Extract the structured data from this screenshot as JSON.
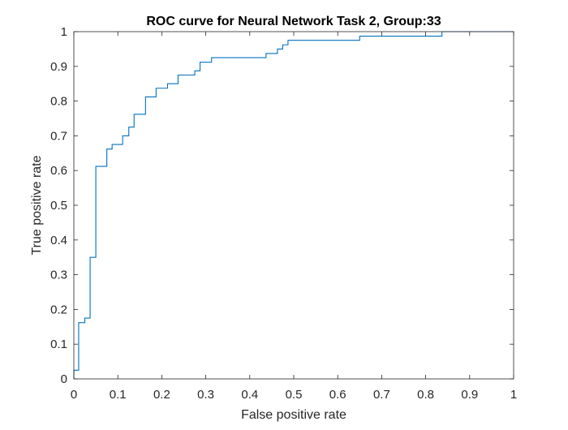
{
  "chart_data": {
    "type": "line",
    "title": "ROC curve for Neural Network Task 2, Group:33",
    "xlabel": "False positive rate",
    "ylabel": "True positive rate",
    "xlim": [
      0,
      1
    ],
    "ylim": [
      0,
      1
    ],
    "x_ticks": [
      0,
      0.1,
      0.2,
      0.3,
      0.4,
      0.5,
      0.6,
      0.7,
      0.8,
      0.9,
      1
    ],
    "x_tick_labels": [
      "0",
      "0.1",
      "0.2",
      "0.3",
      "0.4",
      "0.5",
      "0.6",
      "0.7",
      "0.8",
      "0.9",
      "1"
    ],
    "y_ticks": [
      0,
      0.1,
      0.2,
      0.3,
      0.4,
      0.5,
      0.6,
      0.7,
      0.8,
      0.9,
      1
    ],
    "y_tick_labels": [
      "0",
      "0.1",
      "0.2",
      "0.3",
      "0.4",
      "0.5",
      "0.6",
      "0.7",
      "0.8",
      "0.9",
      "1"
    ],
    "grid": false,
    "box": true,
    "series": [
      {
        "color": "#0072BD",
        "x": [
          0,
          0,
          0.011,
          0.011,
          0.013,
          0.013,
          0.025,
          0.025,
          0.037,
          0.037,
          0.047,
          0.047,
          0.05,
          0.05,
          0.075,
          0.075,
          0.087,
          0.087,
          0.111,
          0.111,
          0.125,
          0.125,
          0.137,
          0.137,
          0.163,
          0.163,
          0.187,
          0.187,
          0.213,
          0.213,
          0.237,
          0.237,
          0.275,
          0.275,
          0.287,
          0.287,
          0.313,
          0.313,
          0.437,
          0.437,
          0.463,
          0.463,
          0.475,
          0.475,
          0.487,
          0.487,
          0.5,
          0.5,
          0.65,
          0.65,
          0.837,
          0.837,
          1
        ],
        "y": [
          0,
          0.025,
          0.025,
          0.162,
          0.162,
          0.162,
          0.162,
          0.175,
          0.175,
          0.35,
          0.35,
          0.35,
          0.35,
          0.612,
          0.612,
          0.662,
          0.662,
          0.675,
          0.675,
          0.7,
          0.7,
          0.725,
          0.725,
          0.762,
          0.762,
          0.812,
          0.812,
          0.837,
          0.837,
          0.85,
          0.85,
          0.875,
          0.875,
          0.887,
          0.887,
          0.912,
          0.912,
          0.925,
          0.925,
          0.937,
          0.937,
          0.95,
          0.95,
          0.962,
          0.962,
          0.975,
          0.975,
          0.975,
          0.975,
          0.987,
          0.987,
          1,
          1
        ]
      }
    ]
  }
}
